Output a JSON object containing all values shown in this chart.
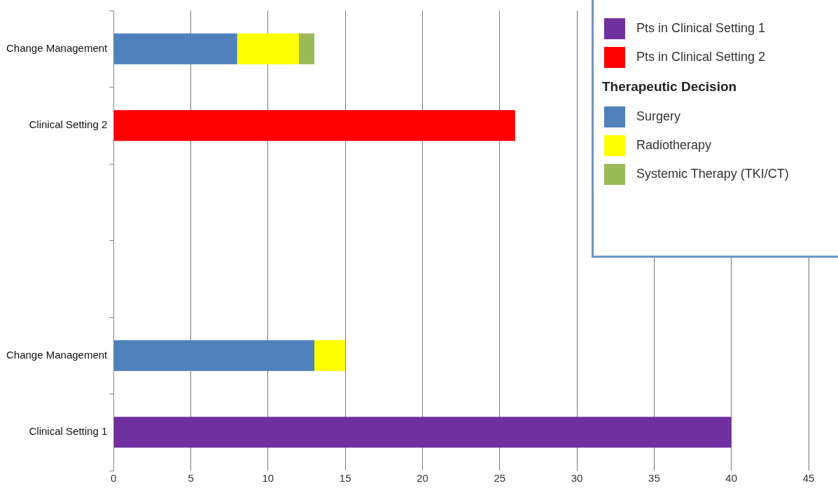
{
  "chart_data": {
    "type": "bar",
    "orientation": "horizontal",
    "stacked": true,
    "categories": [
      "Change Management",
      "Clinical Setting 2",
      null,
      null,
      "Change Management",
      "Clinical Setting 1"
    ],
    "series": [
      {
        "name": "Pts in Clinical Setting 1",
        "color": "#7030a0",
        "values": [
          null,
          null,
          null,
          null,
          null,
          40
        ]
      },
      {
        "name": "Pts in Clinical Setting 2",
        "color": "#ff0000",
        "values": [
          null,
          26,
          null,
          null,
          null,
          null
        ]
      },
      {
        "name": "Surgery",
        "color": "#4f81bd",
        "values": [
          8,
          null,
          null,
          null,
          13,
          null
        ]
      },
      {
        "name": "Radiotherapy",
        "color": "#ffff00",
        "values": [
          4,
          null,
          null,
          null,
          2,
          null
        ]
      },
      {
        "name": "Systemic Therapy (TKI/CT)",
        "color": "#9bbb59",
        "values": [
          1,
          null,
          null,
          null,
          null,
          null
        ]
      }
    ],
    "legend_title": "Therapeutic Decision",
    "xlim": [
      0,
      45
    ],
    "xticks": [
      0,
      5,
      10,
      15,
      20,
      25,
      30,
      35,
      40,
      45
    ],
    "grid": "x",
    "legend": "top right"
  }
}
